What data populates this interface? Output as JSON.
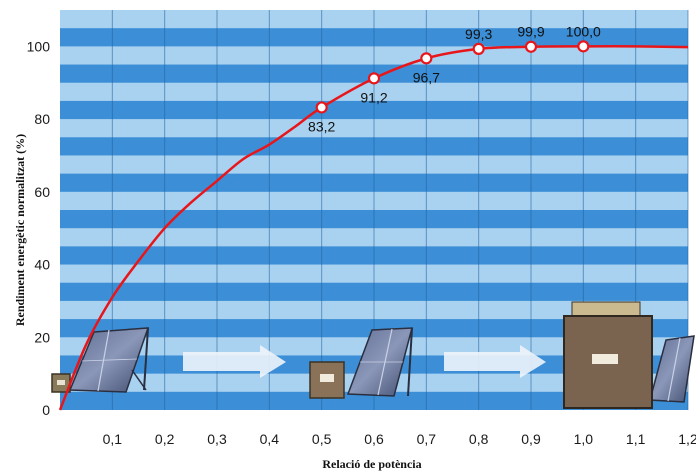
{
  "chart_data": {
    "type": "line",
    "title": "",
    "xlabel": "Relació de potència",
    "ylabel": "Rendiment energètic normalitzat (%)",
    "xlim": [
      0,
      1.2
    ],
    "ylim": [
      0,
      110
    ],
    "x_ticks": [
      "0,1",
      "0,2",
      "0,3",
      "0,4",
      "0,5",
      "0,6",
      "0,7",
      "0,8",
      "0,9",
      "1,0",
      "1,1",
      "1,2"
    ],
    "y_ticks": [
      "0",
      "20",
      "40",
      "60",
      "80",
      "100"
    ],
    "series": [
      {
        "color": "#e8161b",
        "curve": {
          "x": [
            0,
            0.05,
            0.1,
            0.15,
            0.2,
            0.25,
            0.3,
            0.35,
            0.4,
            0.45,
            0.5,
            0.6,
            0.7,
            0.8,
            0.9,
            1.0,
            1.1,
            1.2
          ],
          "y": [
            0,
            18,
            31,
            41,
            50,
            57,
            63,
            69,
            73,
            78,
            83.2,
            91.2,
            96.7,
            99.3,
            99.9,
            100,
            100,
            99.8
          ]
        },
        "points": [
          {
            "x": 0.5,
            "y": 83.2,
            "label": "83,2"
          },
          {
            "x": 0.6,
            "y": 91.2,
            "label": "91,2"
          },
          {
            "x": 0.7,
            "y": 96.7,
            "label": "96,7"
          },
          {
            "x": 0.8,
            "y": 99.3,
            "label": "99,3"
          },
          {
            "x": 0.9,
            "y": 99.9,
            "label": "99,9"
          },
          {
            "x": 1.0,
            "y": 100.0,
            "label": "100,0"
          }
        ]
      }
    ],
    "grid": true,
    "legend": "none"
  },
  "colors": {
    "band_dark": "#3c8fd6",
    "band_light": "#a9d1f0",
    "line": "#e8161b",
    "arrow": "#eef4fb"
  },
  "icons": [
    "solar-panel-small-inverter-icon",
    "arrow-right-icon",
    "solar-panel-medium-inverter-icon",
    "arrow-right-icon",
    "solar-panel-large-inverter-icon"
  ]
}
